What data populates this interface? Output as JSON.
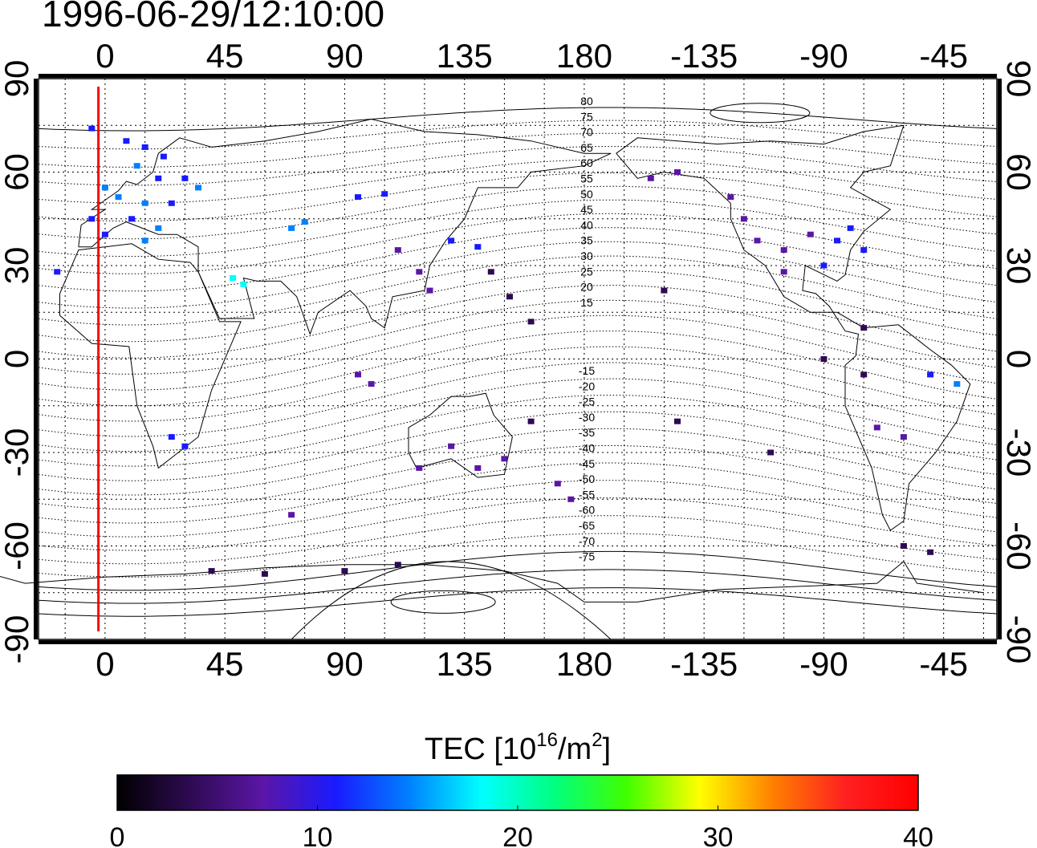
{
  "timestamp": "1996-06-29/12:10:00",
  "map": {
    "lon_ticks": [
      "0",
      "45",
      "90",
      "135",
      "180",
      "-135",
      "-90",
      "-45"
    ],
    "lon_tick_values": [
      0,
      45,
      90,
      135,
      180,
      225,
      270,
      315
    ],
    "lon_range": [
      -25,
      335
    ],
    "lat_ticks_left": [
      "90",
      "60",
      "30",
      "0",
      "-30",
      "-60",
      "-90"
    ],
    "lat_ticks_right": [
      "90",
      "60",
      "30",
      "0",
      "-30",
      "-60",
      "-90"
    ],
    "lat_tick_values": [
      90,
      60,
      30,
      0,
      -30,
      -60,
      -90
    ],
    "grid": "dotted every 15 degrees",
    "marker_line_lon": -2.5,
    "marker_line_color": "#ff0000",
    "contour_labels_north": [
      "80",
      "75",
      "70",
      "65",
      "60",
      "55",
      "50",
      "45",
      "40",
      "35",
      "30",
      "25",
      "20",
      "15"
    ],
    "contour_labels_south": [
      "-15",
      "-20",
      "-25",
      "-30",
      "-35",
      "-40",
      "-45",
      "-50",
      "-55",
      "-60",
      "-65",
      "-70",
      "-75"
    ]
  },
  "colorbar": {
    "label_main": "TEC  [10",
    "label_sup1": "16",
    "label_mid": "/m",
    "label_sup2": "2",
    "label_end": "]",
    "ticks": [
      "0",
      "10",
      "20",
      "30",
      "40"
    ],
    "range": [
      0,
      40
    ],
    "colors": [
      "#000000",
      "#2e0a52",
      "#5b16a6",
      "#1a1aff",
      "#0080ff",
      "#00ffff",
      "#00ff80",
      "#40ff00",
      "#ffff00",
      "#ff8000",
      "#ff2020",
      "#ff0000"
    ]
  },
  "tec_points": [
    {
      "lon": -5,
      "lat": 74,
      "v": 10
    },
    {
      "lon": 8,
      "lat": 70,
      "v": 11
    },
    {
      "lon": 15,
      "lat": 68,
      "v": 12
    },
    {
      "lon": 22,
      "lat": 65,
      "v": 11
    },
    {
      "lon": 12,
      "lat": 62,
      "v": 13
    },
    {
      "lon": 20,
      "lat": 58,
      "v": 12
    },
    {
      "lon": 30,
      "lat": 58,
      "v": 11
    },
    {
      "lon": 0,
      "lat": 55,
      "v": 13
    },
    {
      "lon": 5,
      "lat": 52,
      "v": 13
    },
    {
      "lon": 15,
      "lat": 50,
      "v": 13
    },
    {
      "lon": 25,
      "lat": 50,
      "v": 12
    },
    {
      "lon": 35,
      "lat": 55,
      "v": 14
    },
    {
      "lon": -5,
      "lat": 45,
      "v": 12
    },
    {
      "lon": 10,
      "lat": 45,
      "v": 12
    },
    {
      "lon": 20,
      "lat": 42,
      "v": 13
    },
    {
      "lon": 0,
      "lat": 40,
      "v": 11
    },
    {
      "lon": 15,
      "lat": 38,
      "v": 14
    },
    {
      "lon": -18,
      "lat": 28,
      "v": 12
    },
    {
      "lon": 48,
      "lat": 26,
      "v": 17
    },
    {
      "lon": 52,
      "lat": 24,
      "v": 18
    },
    {
      "lon": 70,
      "lat": 42,
      "v": 13
    },
    {
      "lon": 75,
      "lat": 44,
      "v": 13
    },
    {
      "lon": 95,
      "lat": 52,
      "v": 11
    },
    {
      "lon": 105,
      "lat": 53,
      "v": 11
    },
    {
      "lon": 110,
      "lat": 35,
      "v": 9
    },
    {
      "lon": 118,
      "lat": 28,
      "v": 8
    },
    {
      "lon": 122,
      "lat": 22,
      "v": 9
    },
    {
      "lon": 130,
      "lat": 38,
      "v": 10
    },
    {
      "lon": 140,
      "lat": 36,
      "v": 10
    },
    {
      "lon": 145,
      "lat": 28,
      "v": 5
    },
    {
      "lon": 152,
      "lat": 20,
      "v": 3
    },
    {
      "lon": 160,
      "lat": 12,
      "v": 2
    },
    {
      "lon": 95,
      "lat": -5,
      "v": 8
    },
    {
      "lon": 100,
      "lat": -8,
      "v": 7
    },
    {
      "lon": 118,
      "lat": -35,
      "v": 9
    },
    {
      "lon": 130,
      "lat": -28,
      "v": 8
    },
    {
      "lon": 140,
      "lat": -35,
      "v": 9
    },
    {
      "lon": 150,
      "lat": -32,
      "v": 7
    },
    {
      "lon": 170,
      "lat": -40,
      "v": 8
    },
    {
      "lon": 175,
      "lat": -45,
      "v": 9
    },
    {
      "lon": 160,
      "lat": -20,
      "v": 5
    },
    {
      "lon": 25,
      "lat": -25,
      "v": 11
    },
    {
      "lon": 30,
      "lat": -28,
      "v": 12
    },
    {
      "lon": 70,
      "lat": -50,
      "v": 8
    },
    {
      "lon": 40,
      "lat": -68,
      "v": 4
    },
    {
      "lon": 60,
      "lat": -69,
      "v": 4
    },
    {
      "lon": 90,
      "lat": -68,
      "v": 3
    },
    {
      "lon": 110,
      "lat": -66,
      "v": 3
    },
    {
      "lon": 205,
      "lat": 58,
      "v": 6
    },
    {
      "lon": 215,
      "lat": 60,
      "v": 6
    },
    {
      "lon": 235,
      "lat": 52,
      "v": 7
    },
    {
      "lon": 240,
      "lat": 45,
      "v": 7
    },
    {
      "lon": 245,
      "lat": 38,
      "v": 7
    },
    {
      "lon": 255,
      "lat": 35,
      "v": 7
    },
    {
      "lon": 265,
      "lat": 40,
      "v": 9
    },
    {
      "lon": 275,
      "lat": 38,
      "v": 10
    },
    {
      "lon": 280,
      "lat": 42,
      "v": 10
    },
    {
      "lon": 285,
      "lat": 35,
      "v": 11
    },
    {
      "lon": 270,
      "lat": 30,
      "v": 10
    },
    {
      "lon": 255,
      "lat": 28,
      "v": 6
    },
    {
      "lon": 285,
      "lat": 10,
      "v": 5
    },
    {
      "lon": 270,
      "lat": 0,
      "v": 3
    },
    {
      "lon": 285,
      "lat": -5,
      "v": 5
    },
    {
      "lon": 290,
      "lat": -22,
      "v": 6
    },
    {
      "lon": 300,
      "lat": -25,
      "v": 9
    },
    {
      "lon": 310,
      "lat": -5,
      "v": 12
    },
    {
      "lon": 320,
      "lat": -8,
      "v": 13
    },
    {
      "lon": 250,
      "lat": -30,
      "v": 2
    },
    {
      "lon": 210,
      "lat": 22,
      "v": 3
    },
    {
      "lon": 215,
      "lat": -20,
      "v": 3
    },
    {
      "lon": 300,
      "lat": -60,
      "v": 3
    },
    {
      "lon": 310,
      "lat": -62,
      "v": 2
    }
  ]
}
